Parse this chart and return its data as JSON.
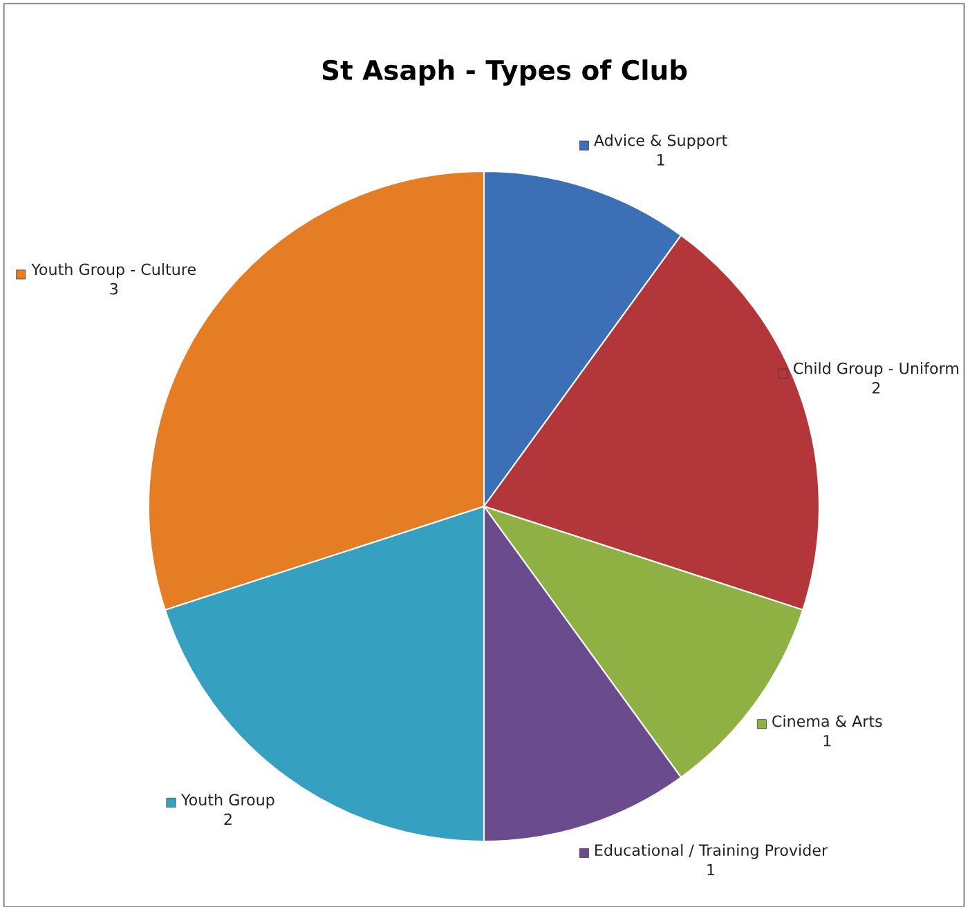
{
  "chart_data": {
    "type": "pie",
    "title": "St Asaph - Types of Club",
    "categories": [
      "Advice & Support",
      "Child Group - Uniform",
      "Cinema & Arts",
      "Educational / Training Provider",
      "Youth Group",
      "Youth Group - Culture"
    ],
    "values": [
      1,
      2,
      1,
      1,
      2,
      3
    ],
    "value_labels": [
      "1",
      "2",
      "1",
      "1",
      "2",
      "3"
    ],
    "colors": [
      "#3b6fb6",
      "#b3373a",
      "#8fb043",
      "#6a4c8e",
      "#35a0bf",
      "#e57d25"
    ],
    "legend": "right"
  }
}
